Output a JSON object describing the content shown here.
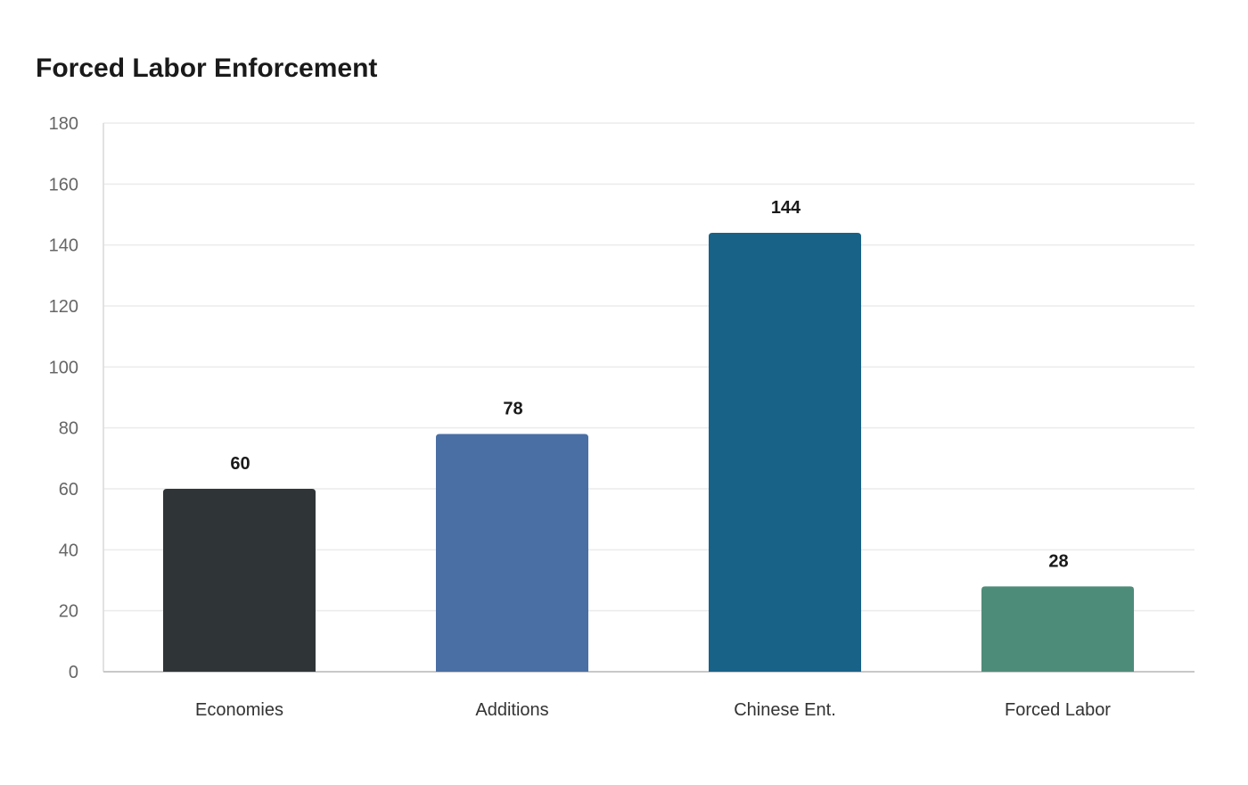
{
  "chart_data": {
    "type": "bar",
    "title": "Forced Labor Enforcement",
    "categories": [
      "Economies",
      "Additions",
      "Chinese Ent.",
      "Forced Labor"
    ],
    "values": [
      60,
      78,
      144,
      28
    ],
    "colors": [
      "#2f3437",
      "#4a6fa5",
      "#186288",
      "#4e8c7a"
    ],
    "ylim": [
      0,
      180
    ],
    "yticks": [
      0,
      20,
      40,
      60,
      80,
      100,
      120,
      140,
      160,
      180
    ],
    "grid": true,
    "xlabel": "",
    "ylabel": "",
    "data_labels": true
  }
}
